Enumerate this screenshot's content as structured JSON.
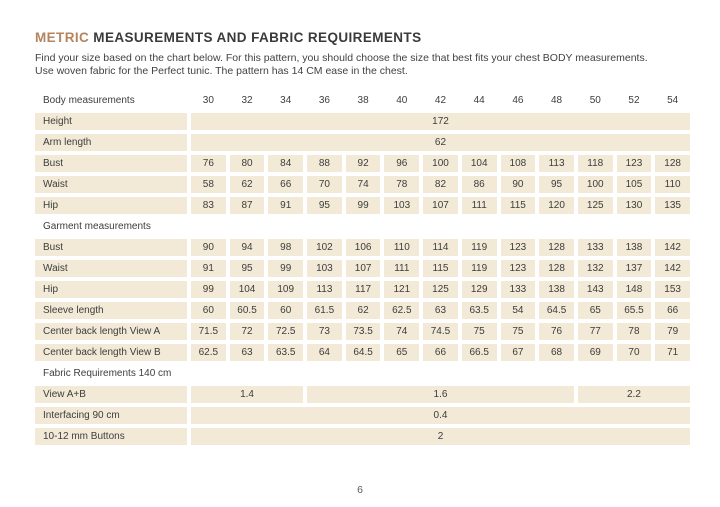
{
  "page": {
    "title_accent": "METRIC",
    "title_rest": " MEASUREMENTS AND FABRIC REQUIREMENTS",
    "intro_line1": "Find your size based on the chart below. For this pattern, you should choose the size that best fits your chest BODY measurements.",
    "intro_line2": "Use woven fabric for the Perfect tunic. The pattern has 14 CM ease  in the chest.",
    "page_number": "6"
  },
  "colors": {
    "accent": "#b5845f",
    "cell_background": "#f2ead6",
    "text": "#3d3d3d"
  },
  "chart_data": {
    "type": "table",
    "title": "METRIC MEASUREMENTS AND FABRIC REQUIREMENTS",
    "header_label": "Body measurements",
    "sizes": [
      "30",
      "32",
      "34",
      "36",
      "38",
      "40",
      "42",
      "44",
      "46",
      "48",
      "50",
      "52",
      "54"
    ],
    "rows": [
      {
        "type": "merged",
        "label": "Height",
        "value": "172"
      },
      {
        "type": "merged",
        "label": "Arm length",
        "value": "62"
      },
      {
        "type": "cells",
        "label": "Bust",
        "values": [
          "76",
          "80",
          "84",
          "88",
          "92",
          "96",
          "100",
          "104",
          "108",
          "113",
          "118",
          "123",
          "128"
        ]
      },
      {
        "type": "cells",
        "label": "Waist",
        "values": [
          "58",
          "62",
          "66",
          "70",
          "74",
          "78",
          "82",
          "86",
          "90",
          "95",
          "100",
          "105",
          "110"
        ]
      },
      {
        "type": "cells",
        "label": "Hip",
        "values": [
          "83",
          "87",
          "91",
          "95",
          "99",
          "103",
          "107",
          "111",
          "115",
          "120",
          "125",
          "130",
          "135"
        ]
      },
      {
        "type": "section",
        "label": "Garment measurements"
      },
      {
        "type": "cells",
        "label": "Bust",
        "values": [
          "90",
          "94",
          "98",
          "102",
          "106",
          "110",
          "114",
          "119",
          "123",
          "128",
          "133",
          "138",
          "142"
        ]
      },
      {
        "type": "cells",
        "label": "Waist",
        "values": [
          "91",
          "95",
          "99",
          "103",
          "107",
          "111",
          "115",
          "119",
          "123",
          "128",
          "132",
          "137",
          "142"
        ]
      },
      {
        "type": "cells",
        "label": "Hip",
        "values": [
          "99",
          "104",
          "109",
          "113",
          "117",
          "121",
          "125",
          "129",
          "133",
          "138",
          "143",
          "148",
          "153"
        ]
      },
      {
        "type": "cells",
        "label": "Sleeve length",
        "values": [
          "60",
          "60.5",
          "60",
          "61.5",
          "62",
          "62.5",
          "63",
          "63.5",
          "54",
          "64.5",
          "65",
          "65.5",
          "66"
        ]
      },
      {
        "type": "cells",
        "label": "Center back length View A",
        "values": [
          "71.5",
          "72",
          "72.5",
          "73",
          "73.5",
          "74",
          "74.5",
          "75",
          "75",
          "76",
          "77",
          "78",
          "79"
        ]
      },
      {
        "type": "cells",
        "label": "Center back length View B",
        "values": [
          "62.5",
          "63",
          "63.5",
          "64",
          "64.5",
          "65",
          "66",
          "66.5",
          "67",
          "68",
          "69",
          "70",
          "71"
        ]
      },
      {
        "type": "section",
        "label": "Fabric Requirements 140 cm"
      },
      {
        "type": "spans",
        "label": "View A+B",
        "spans": [
          {
            "cols": 3,
            "value": "1.4"
          },
          {
            "cols": 7,
            "value": "1.6"
          },
          {
            "cols": 3,
            "value": "2.2"
          }
        ]
      },
      {
        "type": "merged",
        "label": "Interfacing 90 cm",
        "value": "0.4"
      },
      {
        "type": "merged",
        "label": "10-12 mm Buttons",
        "value": "2"
      }
    ]
  }
}
